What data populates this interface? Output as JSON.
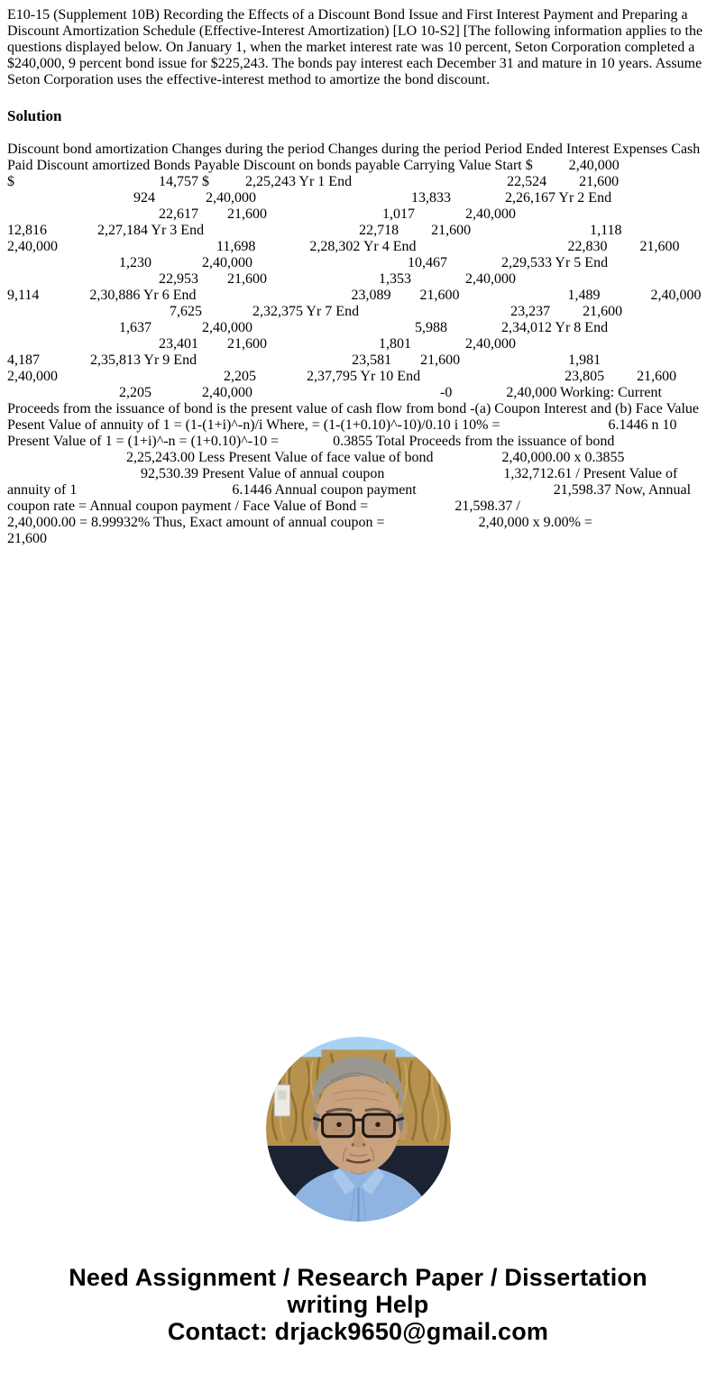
{
  "problem": {
    "text": "E10-15 (Supplement 10B) Recording the Effects of a Discount Bond Issue and First Interest Payment and Preparing a Discount Amortization Schedule (Effective-Interest Amortization) [LO 10-S2] [The following information applies to the questions displayed below. On January 1, when the market interest rate was 10 percent, Seton Corporation completed a $240,000, 9 percent bond issue for $225,243. The bonds pay interest each December 31 and mature in 10 years. Assume Seton Corporation uses the effective-interest method to amortize the bond discount."
  },
  "solution": {
    "heading": "Solution",
    "lines": [
      "Discount bond amortization Changes during the period Changes during the period Period Ended Interest Expenses Cash",
      "Paid Discount amortized Bonds Payable Discount on bonds payable Carrying Value Start $          2,40,000",
      "$                                        14,757 $          2,25,243 Yr 1 End                                           22,524         21,600",
      "                                   924              2,40,000                                           13,833               2,26,167 Yr 2 End",
      "                                          22,617        21,600                                1,017              2,40,000",
      "12,816              2,27,184 Yr 3 End                                           22,718         21,600                                 1,118",
      "2,40,000                                            11,698               2,28,302 Yr 4 End                                          22,830         21,600",
      "                               1,230              2,40,000                                           10,467               2,29,533 Yr 5 End",
      "                                          22,953        21,600                               1,353               2,40,000",
      "9,114              2,30,886 Yr 6 End                                           23,089        21,600                              1,489              2,40,000",
      "                                             7,625              2,32,375 Yr 7 End                                          23,237         21,600",
      "                               1,637              2,40,000                                             5,988               2,34,012 Yr 8 End",
      "                                          23,401        21,600                               1,801               2,40,000",
      "4,187              2,35,813 Yr 9 End                                           23,581        21,600                              1,981",
      "2,40,000                                              2,205              2,37,795 Yr 10 End                                        23,805         21,600",
      "                               2,205              2,40,000                                                    -0               2,40,000 Working: Current",
      "Proceeds from the issuance of bond is the present value of cash flow from bond -(a) Coupon Interest and (b) Face Value",
      "Pesent Value of annuity of 1 = (1-(1+i)^-n)/i Where, = (1-(1+0.10)^-10)/0.10 i 10% =                              6.1446 n 10",
      "Present Value of 1 = (1+i)^-n = (1+0.10)^-10 =               0.3855 Total Proceeds from the issuance of bond",
      "                                 2,25,243.00 Less Present Value of face value of bond                   2,40,000.00 x 0.3855",
      "                                     92,530.39 Present Value of annual coupon                                 1,32,712.61 / Present Value of",
      "annuity of 1                                           6.1446 Annual coupon payment                                      21,598.37 Now, Annual",
      "coupon rate = Annual coupon payment / Face Value of Bond =                        21,598.37 /",
      "2,40,000.00 = 8.99932% Thus, Exact amount of annual coupon =                          2,40,000 x 9.00% =",
      "21,600"
    ]
  },
  "photo": {
    "description": "circular portrait of an elderly man with gray hair and glasses wearing a light blue shirt",
    "colors": {
      "sky": "#a8d2f2",
      "curtain": "#b6924e",
      "curtain_dark": "#8a6a30",
      "curtain_light": "#d4b06a",
      "panel": "#1b2231",
      "skin": "#c9a27f",
      "skin_shadow": "#c2946e",
      "hair": "#9b9892",
      "shirt": "#8fb4e2",
      "glasses": "#1f1a14"
    }
  },
  "footer": {
    "line1": "Need Assignment / Research Paper / Dissertation",
    "line2": "writing Help",
    "line3": "Contact: drjack9650@gmail.com"
  },
  "page": {
    "background": "#ffffff",
    "text_color": "#000000"
  }
}
